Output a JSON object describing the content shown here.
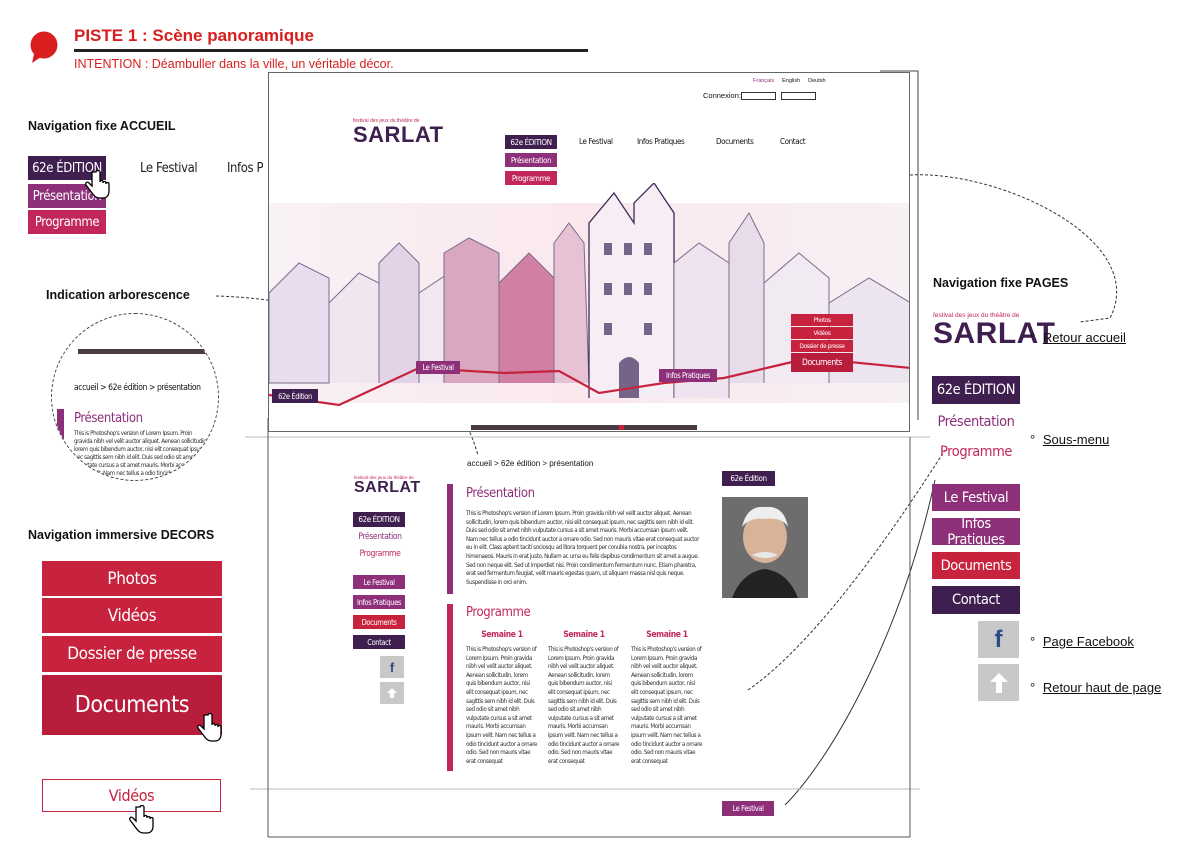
{
  "header": {
    "title": "PISTE 1 : Scène panoramique",
    "intention": "INTENTION : Déambuller dans la ville, un véritable décor."
  },
  "left": {
    "nav_accueil_title": "Navigation fixe ACCUEIL",
    "nav_accueil": {
      "edition": "62e ÉDITION",
      "festival": "Le Festival",
      "infos": "Infos Pr",
      "presentation": "Présentation",
      "programme": "Programme"
    },
    "arbo_title": "Indication arborescence",
    "arbo": {
      "breadcrumb": "accueil > 62e édition > présentation",
      "heading": "Présentation",
      "text": "This is Photoshop's version of Lorem Ipsum. Proin gravida nibh vel velit auctor aliquet. Aenean sollicitudin, lorem quis bibendum auctor, nisi elit consequat ipsum, nec sagittis sem nibh id elit. Duis sed odio sit amet nibh vulputate cursus a sit amet mauris. Morbi accumsan ipsum velit. Nam nec tellus a odio tincidunt auctor a ornare odio."
    },
    "decors_title": "Navigation immersive DECORS",
    "decors": {
      "photos": "Photos",
      "videos": "Vidéos",
      "presse": "Dossier de presse",
      "documents": "Documents",
      "videos_hover": "Vidéos"
    }
  },
  "mock": {
    "languages": [
      "Français",
      "English",
      "Deutsh"
    ],
    "connexion_label": "Connexion:",
    "logo_small": "festival des jeux du théâtre de",
    "logo_big": "SARLAT",
    "nav": {
      "edition": "62e ÉDITION",
      "presentation": "Présentation",
      "programme": "Programme",
      "festival": "Le Festival",
      "infos": "Infos Pratiques",
      "documents": "Documents",
      "contact": "Contact"
    },
    "scene": {
      "label_edition": "62e Édition",
      "label_festival": "Le Festival",
      "label_infos": "Infos Pratiques",
      "photos": "Photos",
      "videos": "Vidéos",
      "presse": "Dossier de presse",
      "documents": "Documents"
    },
    "page": {
      "breadcrumb": "accueil > 62e édition > présentation",
      "side": {
        "edition": "62e ÉDITION",
        "presentation": "Présentation",
        "programme": "Programme",
        "festival": "Le Festival",
        "infos": "Infos Pratiques",
        "documents": "Documents",
        "contact": "Contact",
        "facebook": "f"
      },
      "presentation_title": "Présentation",
      "presentation_text": "This is Photoshop's version of Lorem Ipsum. Proin gravida nibh vel velit auctor aliquet. Aenean sollicitudin, lorem quis bibendum auctor, nisi elit consequat ipsum, nec sagittis sem nibh id elit. Duis sed odio sit amet nibh vulputate cursus a sit amet mauris. Morbi accumsan ipsum velit. Nam nec tellus a odio tincidunt auctor a ornare odio. Sed non mauris vitae erat consequat auctor eu in elit. Class aptent taciti sociosqu ad litora torquent per conubia nostra, per inceptos himenaeos. Mauris in erat justo. Nullam ac urna eu felis dapibus condimentum sit amet a augue. Sed non neque elit. Sed ut imperdiet nisi. Proin condimentum fermentum nunc. Etiam pharetra, erat sed fermentum feugiat, velit mauris egestas quam, ut aliquam massa nisl quis neque. Suspendisse in orci enim.",
      "edition_badge": "62e Édition",
      "programme_title": "Programme",
      "semaines": [
        {
          "title": "Semaine 1",
          "text": "This is Photoshop's version of Lorem Ipsum. Proin gravida nibh vel velit auctor aliquet. Aenean sollicitudin, lorem quis bibendum auctor, nisi elit consequat ipsum, nec sagittis sem nibh id elit. Duis sed odio sit amet nibh vulputate cursus a sit amet mauris. Morbi accumsan ipsum velit. Nam nec tellus a odio tincidunt auctor a ornare odio. Sed non mauris vitae erat consequat"
        },
        {
          "title": "Semaine 1",
          "text": "This is Photoshop's version of Lorem Ipsum. Proin gravida nibh vel velit auctor aliquet. Aenean sollicitudin, lorem quis bibendum auctor, nisi elit consequat ipsum, nec sagittis sem nibh id elit. Duis sed odio sit amet nibh vulputate cursus a sit amet mauris. Morbi accumsan ipsum velit. Nam nec tellus a odio tincidunt auctor a ornare odio. Sed non mauris vitae erat consequat"
        },
        {
          "title": "Semaine 1",
          "text": "This is Photoshop's version of Lorem Ipsum. Proin gravida nibh vel velit auctor aliquet. Aenean sollicitudin, lorem quis bibendum auctor, nisi elit consequat ipsum, nec sagittis sem nibh id elit. Duis sed odio sit amet nibh vulputate cursus a sit amet mauris. Morbi accumsan ipsum velit. Nam nec tellus a odio tincidunt auctor a ornare odio. Sed non mauris vitae erat consequat"
        }
      ],
      "footer_festival": "Le Festival"
    }
  },
  "right": {
    "nav_pages_title": "Navigation fixe PAGES",
    "logo_small": "festival des jeux du théâtre de",
    "logo_big": "SARLAT",
    "retour_accueil": "Retour accueil",
    "edition": "62e ÉDITION",
    "presentation": "Présentation",
    "programme": "Programme",
    "sous_menu": "Sous-menu",
    "festival": "Le Festival",
    "infos": "Infos Pratiques",
    "documents": "Documents",
    "contact": "Contact",
    "facebook": "f",
    "page_facebook": "Page Facebook",
    "retour_haut": "Retour haut de page",
    "bullet": "°"
  },
  "colors": {
    "dark": "#3f1f4f",
    "plum": "#8e2f7a",
    "rose": "#c2275a",
    "red": "#c8233e",
    "title_red": "#d81e1e"
  }
}
